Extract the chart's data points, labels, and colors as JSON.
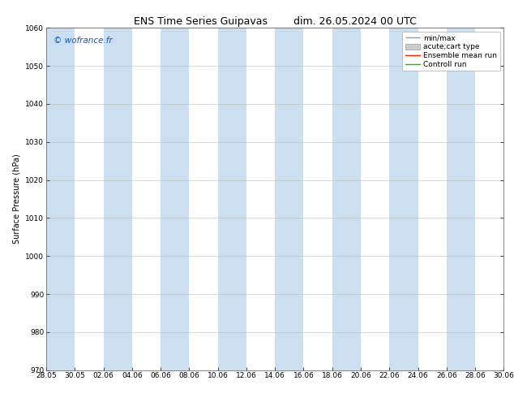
{
  "title_left": "ENS Time Series Guipavas",
  "title_right": "dim. 26.05.2024 00 UTC",
  "ylabel": "Surface Pressure (hPa)",
  "ylim": [
    970,
    1060
  ],
  "yticks": [
    970,
    980,
    990,
    1000,
    1010,
    1020,
    1030,
    1040,
    1050,
    1060
  ],
  "xtick_labels": [
    "28.05",
    "30.05",
    "02.06",
    "04.06",
    "06.06",
    "08.06",
    "10.06",
    "12.06",
    "14.06",
    "16.06",
    "18.06",
    "20.06",
    "22.06",
    "24.06",
    "26.06",
    "28.06",
    "30.06"
  ],
  "watermark": "© wofrance.fr",
  "band_color_light": "#ccdff0",
  "band_color_white": "#ffffff",
  "background_color": "#ffffff",
  "figsize": [
    6.34,
    4.9
  ],
  "dpi": 100,
  "title_fontsize": 9,
  "ylabel_fontsize": 7,
  "tick_fontsize": 6.5,
  "legend_fontsize": 6.5,
  "watermark_fontsize": 7.5,
  "watermark_color": "#1155cc"
}
